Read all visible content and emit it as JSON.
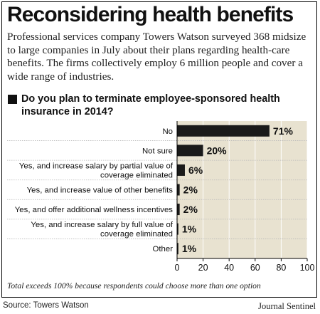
{
  "title": "Reconsidering health benefits",
  "intro": "Professional services company Towers Watson surveyed 368 midsize to large companies in July about their plans regarding health-care benefits. The firms collectively employ 6 million people and cover a wide range of industries.",
  "question": "Do you plan to terminate employee-sponsored health insurance in 2014?",
  "footnote": "Total exceeds 100% because respondents could choose more than one option",
  "source": "Source: Towers Watson",
  "credit": "Journal Sentinel",
  "colors": {
    "panel": "#e8e2d0",
    "bar": "#1a1a1a",
    "grid": "#ffffff"
  },
  "chart_data": {
    "type": "bar",
    "orientation": "horizontal",
    "categories": [
      [
        "No"
      ],
      [
        "Not sure"
      ],
      [
        "Yes, and increase salary by partial value of",
        "coverage eliminated"
      ],
      [
        "Yes, and increase value of other benefits"
      ],
      [
        "Yes, and offer additional wellness incentives"
      ],
      [
        "Yes, and increase salary by full value of",
        "coverage eliminated"
      ],
      [
        "Other"
      ]
    ],
    "values": [
      71,
      20,
      6,
      2,
      2,
      1,
      1
    ],
    "value_labels": [
      "71%",
      "20%",
      "6%",
      "2%",
      "2%",
      "1%",
      "1%"
    ],
    "xlim": [
      0,
      100
    ],
    "xticks": [
      0,
      20,
      40,
      60,
      80,
      100
    ],
    "xtick_labels": [
      "0",
      "20",
      "40",
      "60",
      "80",
      "100"
    ],
    "grid": true
  }
}
